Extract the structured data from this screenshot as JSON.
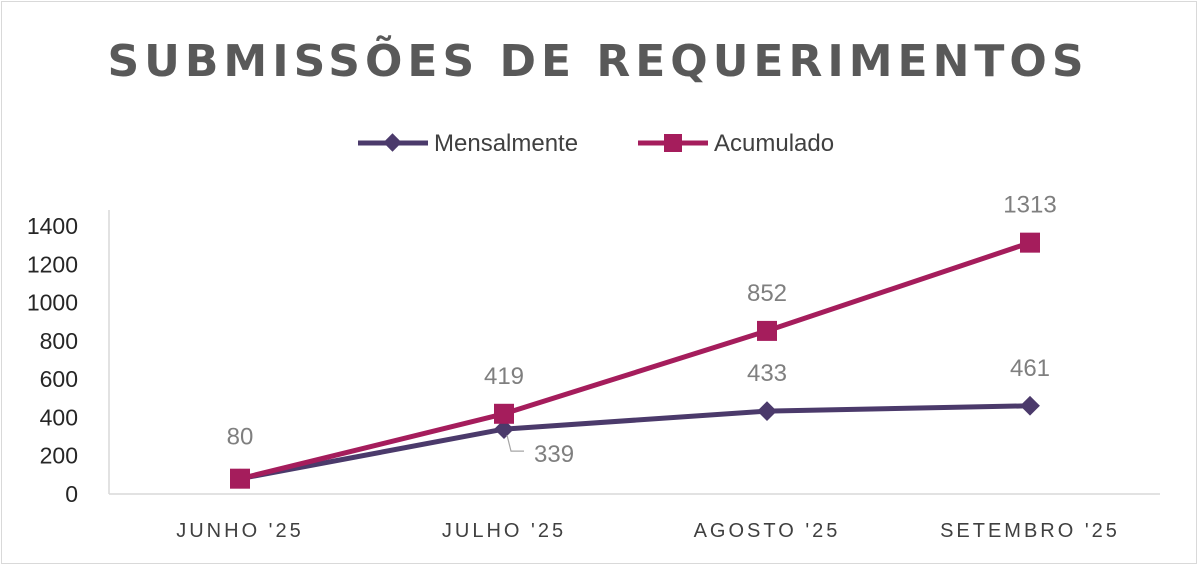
{
  "chart_data": {
    "type": "line",
    "title": "SUBMISSÕES DE REQUERIMENTOS",
    "categories": [
      "JUNHO '25",
      "JULHO '25",
      "AGOSTO '25",
      "SETEMBRO '25"
    ],
    "series": [
      {
        "name": "Mensalmente",
        "values": [
          80,
          339,
          433,
          461
        ],
        "color": "#4b3a6b",
        "marker": "diamond"
      },
      {
        "name": "Acumulado",
        "values": [
          80,
          419,
          852,
          1313
        ],
        "color": "#a51d5c",
        "marker": "square"
      }
    ],
    "data_labels": [
      {
        "series": 1,
        "index": 0,
        "text": "80"
      },
      {
        "series": 1,
        "index": 1,
        "text": "419"
      },
      {
        "series": 1,
        "index": 2,
        "text": "852"
      },
      {
        "series": 1,
        "index": 3,
        "text": "1313"
      },
      {
        "series": 0,
        "index": 1,
        "text": "339"
      },
      {
        "series": 0,
        "index": 2,
        "text": "433"
      },
      {
        "series": 0,
        "index": 3,
        "text": "461"
      }
    ],
    "yticks": [
      "0",
      "200",
      "400",
      "600",
      "800",
      "1000",
      "1200",
      "1400"
    ],
    "ylim": [
      0,
      1400
    ],
    "legend_position": "top",
    "grid": false
  }
}
